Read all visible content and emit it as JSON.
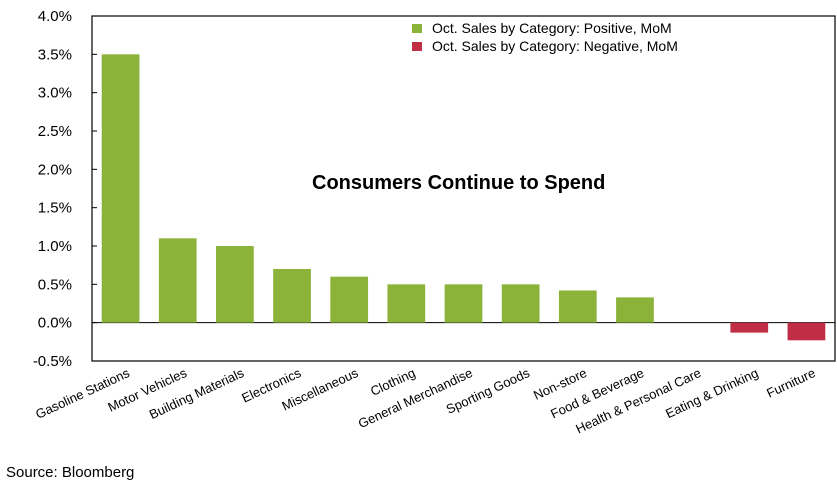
{
  "chart_data": {
    "type": "bar",
    "title": "Consumers Continue to Spend",
    "categories": [
      "Gasoline Stations",
      "Motor Vehicles",
      "Building Materials",
      "Electronics",
      "Miscellaneous",
      "Clothing",
      "General Merchandise",
      "Sporting Goods",
      "Non-store",
      "Food & Beverage",
      "Health & Personal Care",
      "Eating & Drinking",
      "Furniture"
    ],
    "values": [
      3.5,
      1.1,
      1.0,
      0.7,
      0.6,
      0.5,
      0.5,
      0.5,
      0.42,
      0.33,
      0.0,
      -0.13,
      -0.23
    ],
    "series": [
      {
        "name": "Oct. Sales by Category: Positive, MoM",
        "color": "#8bb33a"
      },
      {
        "name": "Oct. Sales by Category: Negative, MoM",
        "color": "#bf2e45"
      }
    ],
    "ylim": [
      -0.5,
      4.0
    ],
    "yticks": [
      "-0.5%",
      "0.0%",
      "0.5%",
      "1.0%",
      "1.5%",
      "2.0%",
      "2.5%",
      "3.0%",
      "3.5%",
      "4.0%"
    ],
    "grid": false,
    "legend_position": "top-right"
  },
  "source": "Source: Bloomberg"
}
